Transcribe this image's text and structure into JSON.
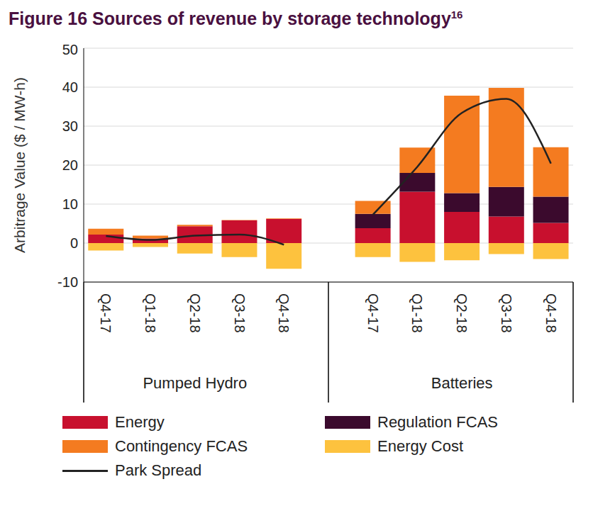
{
  "chart_data": {
    "type": "bar",
    "title": "Figure 16 Sources of revenue by storage technology",
    "title_superscript": "16",
    "y_label": "Arbitrage Value ($ / MW-h)",
    "stacked": true,
    "grid": true,
    "categories": [
      "Q4-17",
      "Q1-18",
      "Q2-18",
      "Q3-18",
      "Q4-18",
      null,
      "Q4-17",
      "Q1-18",
      "Q2-18",
      "Q3-18",
      "Q4-18"
    ],
    "groups": [
      {
        "name": "Pumped Hydro",
        "size": 5
      },
      {
        "name": "Batteries",
        "size": 5
      }
    ],
    "ylim": [
      -10,
      50
    ],
    "yticks": [
      -10,
      0,
      10,
      20,
      30,
      40,
      50
    ],
    "series": [
      {
        "name": "Energy",
        "type": "bar",
        "color": "#c8102e",
        "values": [
          2.2,
          1.2,
          4.3,
          5.8,
          6.2,
          null,
          3.8,
          13.2,
          8.0,
          6.8,
          5.2
        ]
      },
      {
        "name": "Regulation FCAS",
        "type": "bar",
        "color": "#3b0a2d",
        "values": [
          0,
          0,
          0,
          0,
          0,
          null,
          3.7,
          4.8,
          4.8,
          7.6,
          6.7
        ]
      },
      {
        "name": "Contingency FCAS",
        "type": "bar",
        "color": "#f47b20",
        "values": [
          1.5,
          0.7,
          0.4,
          0.1,
          0.1,
          null,
          3.3,
          6.5,
          25.0,
          25.4,
          12.7
        ]
      },
      {
        "name": "Energy Cost",
        "type": "bar",
        "color": "#fdc23e",
        "values": [
          -1.9,
          -1.0,
          -2.7,
          -3.6,
          -6.6,
          null,
          -3.6,
          -4.8,
          -4.4,
          -2.8,
          -4.1
        ]
      },
      {
        "name": "Park Spread",
        "type": "line",
        "color": "#222222",
        "values": [
          1.8,
          0.8,
          1.9,
          2.2,
          -0.4,
          null,
          7.3,
          19.6,
          33.4,
          37.0,
          20.4
        ]
      }
    ]
  }
}
